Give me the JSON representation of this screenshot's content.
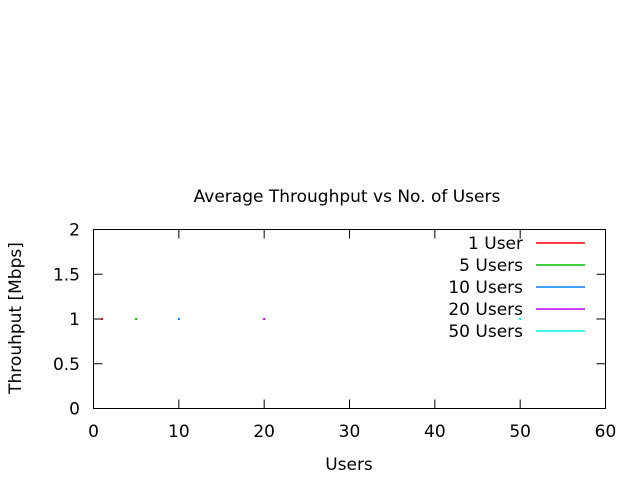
{
  "chart_data": {
    "type": "scatter",
    "title": "Average Throughput vs No. of Users",
    "xlabel": "Users",
    "ylabel": "Throuhput [Mbps]",
    "xlim": [
      0,
      60
    ],
    "ylim": [
      0,
      2
    ],
    "xticks": [
      0,
      10,
      20,
      30,
      40,
      50,
      60
    ],
    "yticks": [
      0,
      0.5,
      1,
      1.5,
      2
    ],
    "xtick_labels": [
      "0",
      "10",
      "20",
      "30",
      "40",
      "50",
      "60"
    ],
    "ytick_labels": [
      "0",
      "0.5",
      "1",
      "1.5",
      "2"
    ],
    "grid": false,
    "legend_position": "top-right",
    "series": [
      {
        "name": "1 User",
        "color": "#ff0000",
        "x": [
          1
        ],
        "y": [
          1
        ]
      },
      {
        "name": "5 Users",
        "color": "#00c000",
        "x": [
          5
        ],
        "y": [
          1
        ]
      },
      {
        "name": "10 Users",
        "color": "#0080ff",
        "x": [
          10
        ],
        "y": [
          1
        ]
      },
      {
        "name": "20 Users",
        "color": "#c000ff",
        "x": [
          20
        ],
        "y": [
          1
        ]
      },
      {
        "name": "50 Users",
        "color": "#00eeee",
        "x": [
          50
        ],
        "y": [
          1
        ]
      }
    ]
  }
}
